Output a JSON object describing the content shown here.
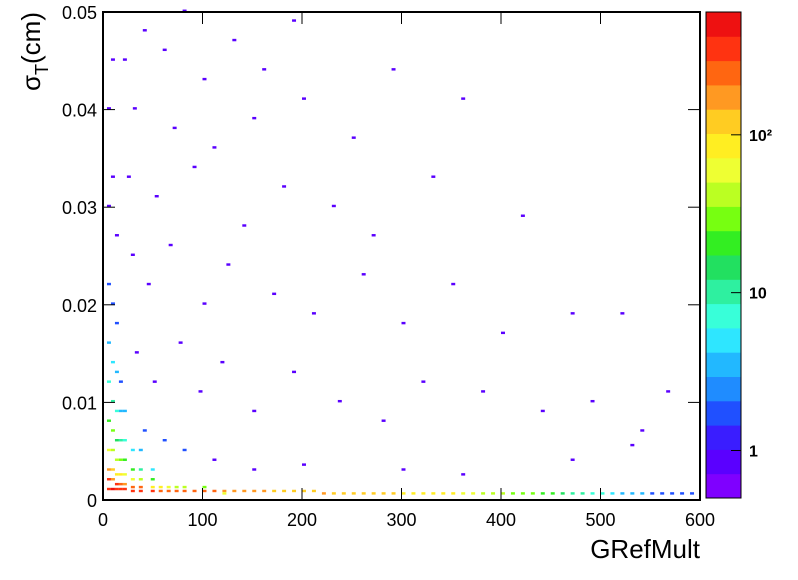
{
  "chart_data": {
    "type": "heatmap2d",
    "xlabel": "GRefMult",
    "ylabel": [
      "σ",
      "T",
      "(cm)"
    ],
    "xlim": [
      0,
      600
    ],
    "ylim": [
      0,
      0.05
    ],
    "xticks": [
      0,
      100,
      200,
      300,
      400,
      500,
      600
    ],
    "yticks": [
      0,
      0.01,
      0.02,
      0.03,
      0.04,
      0.05
    ],
    "zlim": [
      0.5,
      600
    ],
    "zscale": "log",
    "zticks": [
      1,
      10,
      {
        "value": 100,
        "label": "10²"
      }
    ],
    "xbin_width": 4,
    "ybin_width": 0.00025,
    "palette": [
      "#7f00ff",
      "#5a00ff",
      "#3a1dff",
      "#2050ff",
      "#1f8cff",
      "#22b8ff",
      "#2ee6ff",
      "#38ffd9",
      "#2ef0a0",
      "#22e060",
      "#33ee22",
      "#77ff11",
      "#bbff22",
      "#eeff33",
      "#ffee22",
      "#ffcc22",
      "#ff9922",
      "#ff6611",
      "#ff3311",
      "#ee1111"
    ],
    "cells": [
      [
        4,
        0.001,
        400
      ],
      [
        4,
        0.002,
        300
      ],
      [
        4,
        0.003,
        150
      ],
      [
        4,
        0.005,
        60
      ],
      [
        4,
        0.008,
        20
      ],
      [
        4,
        0.012,
        6
      ],
      [
        4,
        0.016,
        3
      ],
      [
        4,
        0.022,
        2
      ],
      [
        4,
        0.03,
        1
      ],
      [
        4,
        0.04,
        1
      ],
      [
        8,
        0.001,
        450
      ],
      [
        8,
        0.002,
        200
      ],
      [
        8,
        0.003,
        120
      ],
      [
        8,
        0.005,
        50
      ],
      [
        8,
        0.007,
        25
      ],
      [
        8,
        0.01,
        10
      ],
      [
        8,
        0.014,
        5
      ],
      [
        8,
        0.02,
        2
      ],
      [
        8,
        0.033,
        1
      ],
      [
        8,
        0.045,
        1
      ],
      [
        12,
        0.001,
        400
      ],
      [
        12,
        0.0015,
        300
      ],
      [
        12,
        0.0025,
        100
      ],
      [
        12,
        0.004,
        40
      ],
      [
        12,
        0.006,
        15
      ],
      [
        12,
        0.009,
        6
      ],
      [
        12,
        0.013,
        3
      ],
      [
        12,
        0.018,
        2
      ],
      [
        12,
        0.027,
        1
      ],
      [
        16,
        0.001,
        380
      ],
      [
        16,
        0.0015,
        250
      ],
      [
        16,
        0.0025,
        80
      ],
      [
        16,
        0.004,
        30
      ],
      [
        16,
        0.006,
        12
      ],
      [
        16,
        0.009,
        4
      ],
      [
        16,
        0.012,
        2
      ],
      [
        20,
        0.001,
        350
      ],
      [
        20,
        0.0015,
        200
      ],
      [
        20,
        0.0025,
        60
      ],
      [
        20,
        0.004,
        20
      ],
      [
        20,
        0.006,
        8
      ],
      [
        20,
        0.009,
        3
      ],
      [
        28,
        0.0008,
        320
      ],
      [
        28,
        0.0012,
        260
      ],
      [
        28,
        0.002,
        70
      ],
      [
        28,
        0.003,
        18
      ],
      [
        28,
        0.005,
        5
      ],
      [
        36,
        0.0008,
        300
      ],
      [
        36,
        0.0012,
        220
      ],
      [
        36,
        0.002,
        50
      ],
      [
        36,
        0.003,
        12
      ],
      [
        36,
        0.005,
        3
      ],
      [
        48,
        0.0008,
        300
      ],
      [
        48,
        0.0012,
        100
      ],
      [
        48,
        0.002,
        20
      ],
      [
        48,
        0.003,
        5
      ],
      [
        56,
        0.0008,
        280
      ],
      [
        56,
        0.0012,
        80
      ],
      [
        64,
        0.0008,
        250
      ],
      [
        64,
        0.0012,
        60
      ],
      [
        72,
        0.0008,
        250
      ],
      [
        72,
        0.0012,
        50
      ],
      [
        80,
        0.0008,
        250
      ],
      [
        80,
        0.0012,
        40
      ],
      [
        90,
        0.0008,
        230
      ],
      [
        100,
        0.0008,
        220
      ],
      [
        100,
        0.0012,
        30
      ],
      [
        110,
        0.0008,
        210
      ],
      [
        120,
        0.0008,
        200
      ],
      [
        120,
        0.00055,
        60
      ],
      [
        130,
        0.0008,
        190
      ],
      [
        140,
        0.0008,
        180
      ],
      [
        150,
        0.0008,
        160
      ],
      [
        160,
        0.0008,
        150
      ],
      [
        170,
        0.0008,
        145
      ],
      [
        180,
        0.0008,
        140
      ],
      [
        190,
        0.0008,
        130
      ],
      [
        200,
        0.0008,
        120
      ],
      [
        210,
        0.0008,
        110
      ],
      [
        220,
        0.00055,
        150
      ],
      [
        230,
        0.00055,
        140
      ],
      [
        240,
        0.00055,
        130
      ],
      [
        250,
        0.00055,
        125
      ],
      [
        260,
        0.00055,
        120
      ],
      [
        270,
        0.00055,
        115
      ],
      [
        280,
        0.00055,
        110
      ],
      [
        290,
        0.00055,
        105
      ],
      [
        300,
        0.00055,
        100
      ],
      [
        310,
        0.00055,
        95
      ],
      [
        320,
        0.00055,
        90
      ],
      [
        330,
        0.00055,
        85
      ],
      [
        340,
        0.00055,
        80
      ],
      [
        350,
        0.00055,
        75
      ],
      [
        360,
        0.00055,
        70
      ],
      [
        370,
        0.00055,
        60
      ],
      [
        380,
        0.00055,
        50
      ],
      [
        390,
        0.00055,
        45
      ],
      [
        400,
        0.00055,
        40
      ],
      [
        410,
        0.00055,
        35
      ],
      [
        420,
        0.00055,
        30
      ],
      [
        430,
        0.00055,
        25
      ],
      [
        440,
        0.00055,
        20
      ],
      [
        450,
        0.00055,
        18
      ],
      [
        460,
        0.00055,
        15
      ],
      [
        470,
        0.00055,
        12
      ],
      [
        480,
        0.00055,
        10
      ],
      [
        490,
        0.00055,
        8
      ],
      [
        500,
        0.00055,
        6
      ],
      [
        510,
        0.00055,
        5
      ],
      [
        520,
        0.00055,
        4
      ],
      [
        530,
        0.00055,
        3
      ],
      [
        540,
        0.00055,
        3
      ],
      [
        550,
        0.00055,
        2
      ],
      [
        560,
        0.00055,
        2
      ],
      [
        570,
        0.00055,
        2
      ],
      [
        580,
        0.00055,
        2
      ],
      [
        590,
        0.00055,
        2
      ],
      [
        20,
        0.045,
        1
      ],
      [
        40,
        0.048,
        1
      ],
      [
        60,
        0.046,
        1
      ],
      [
        80,
        0.05,
        1
      ],
      [
        100,
        0.043,
        1
      ],
      [
        130,
        0.047,
        1
      ],
      [
        160,
        0.044,
        1
      ],
      [
        190,
        0.049,
        1
      ],
      [
        30,
        0.04,
        1
      ],
      [
        70,
        0.038,
        1
      ],
      [
        110,
        0.036,
        1
      ],
      [
        150,
        0.039,
        1
      ],
      [
        200,
        0.041,
        1
      ],
      [
        250,
        0.037,
        1
      ],
      [
        290,
        0.044,
        1
      ],
      [
        360,
        0.041,
        1
      ],
      [
        24,
        0.033,
        1
      ],
      [
        52,
        0.031,
        1
      ],
      [
        90,
        0.034,
        1
      ],
      [
        140,
        0.028,
        1
      ],
      [
        180,
        0.032,
        1
      ],
      [
        230,
        0.03,
        1
      ],
      [
        270,
        0.027,
        1
      ],
      [
        330,
        0.033,
        1
      ],
      [
        420,
        0.029,
        1
      ],
      [
        28,
        0.025,
        1
      ],
      [
        44,
        0.022,
        1
      ],
      [
        66,
        0.026,
        1
      ],
      [
        100,
        0.02,
        1
      ],
      [
        124,
        0.024,
        1
      ],
      [
        170,
        0.021,
        1
      ],
      [
        210,
        0.019,
        1
      ],
      [
        260,
        0.023,
        1
      ],
      [
        300,
        0.018,
        1
      ],
      [
        350,
        0.022,
        1
      ],
      [
        400,
        0.017,
        1
      ],
      [
        470,
        0.019,
        1
      ],
      [
        520,
        0.019,
        1
      ],
      [
        32,
        0.015,
        1
      ],
      [
        50,
        0.012,
        1
      ],
      [
        76,
        0.016,
        1
      ],
      [
        96,
        0.011,
        1
      ],
      [
        118,
        0.014,
        1
      ],
      [
        150,
        0.009,
        1
      ],
      [
        190,
        0.013,
        1
      ],
      [
        236,
        0.01,
        1
      ],
      [
        280,
        0.008,
        1
      ],
      [
        320,
        0.012,
        1
      ],
      [
        380,
        0.011,
        1
      ],
      [
        440,
        0.009,
        1
      ],
      [
        490,
        0.01,
        1
      ],
      [
        540,
        0.007,
        1
      ],
      [
        566,
        0.011,
        1
      ],
      [
        40,
        0.007,
        2
      ],
      [
        60,
        0.006,
        2
      ],
      [
        80,
        0.005,
        2
      ],
      [
        110,
        0.004,
        1
      ],
      [
        150,
        0.003,
        1
      ],
      [
        200,
        0.0035,
        1
      ],
      [
        300,
        0.003,
        1
      ],
      [
        360,
        0.0025,
        1
      ],
      [
        470,
        0.004,
        1
      ],
      [
        530,
        0.0055,
        1
      ]
    ]
  }
}
